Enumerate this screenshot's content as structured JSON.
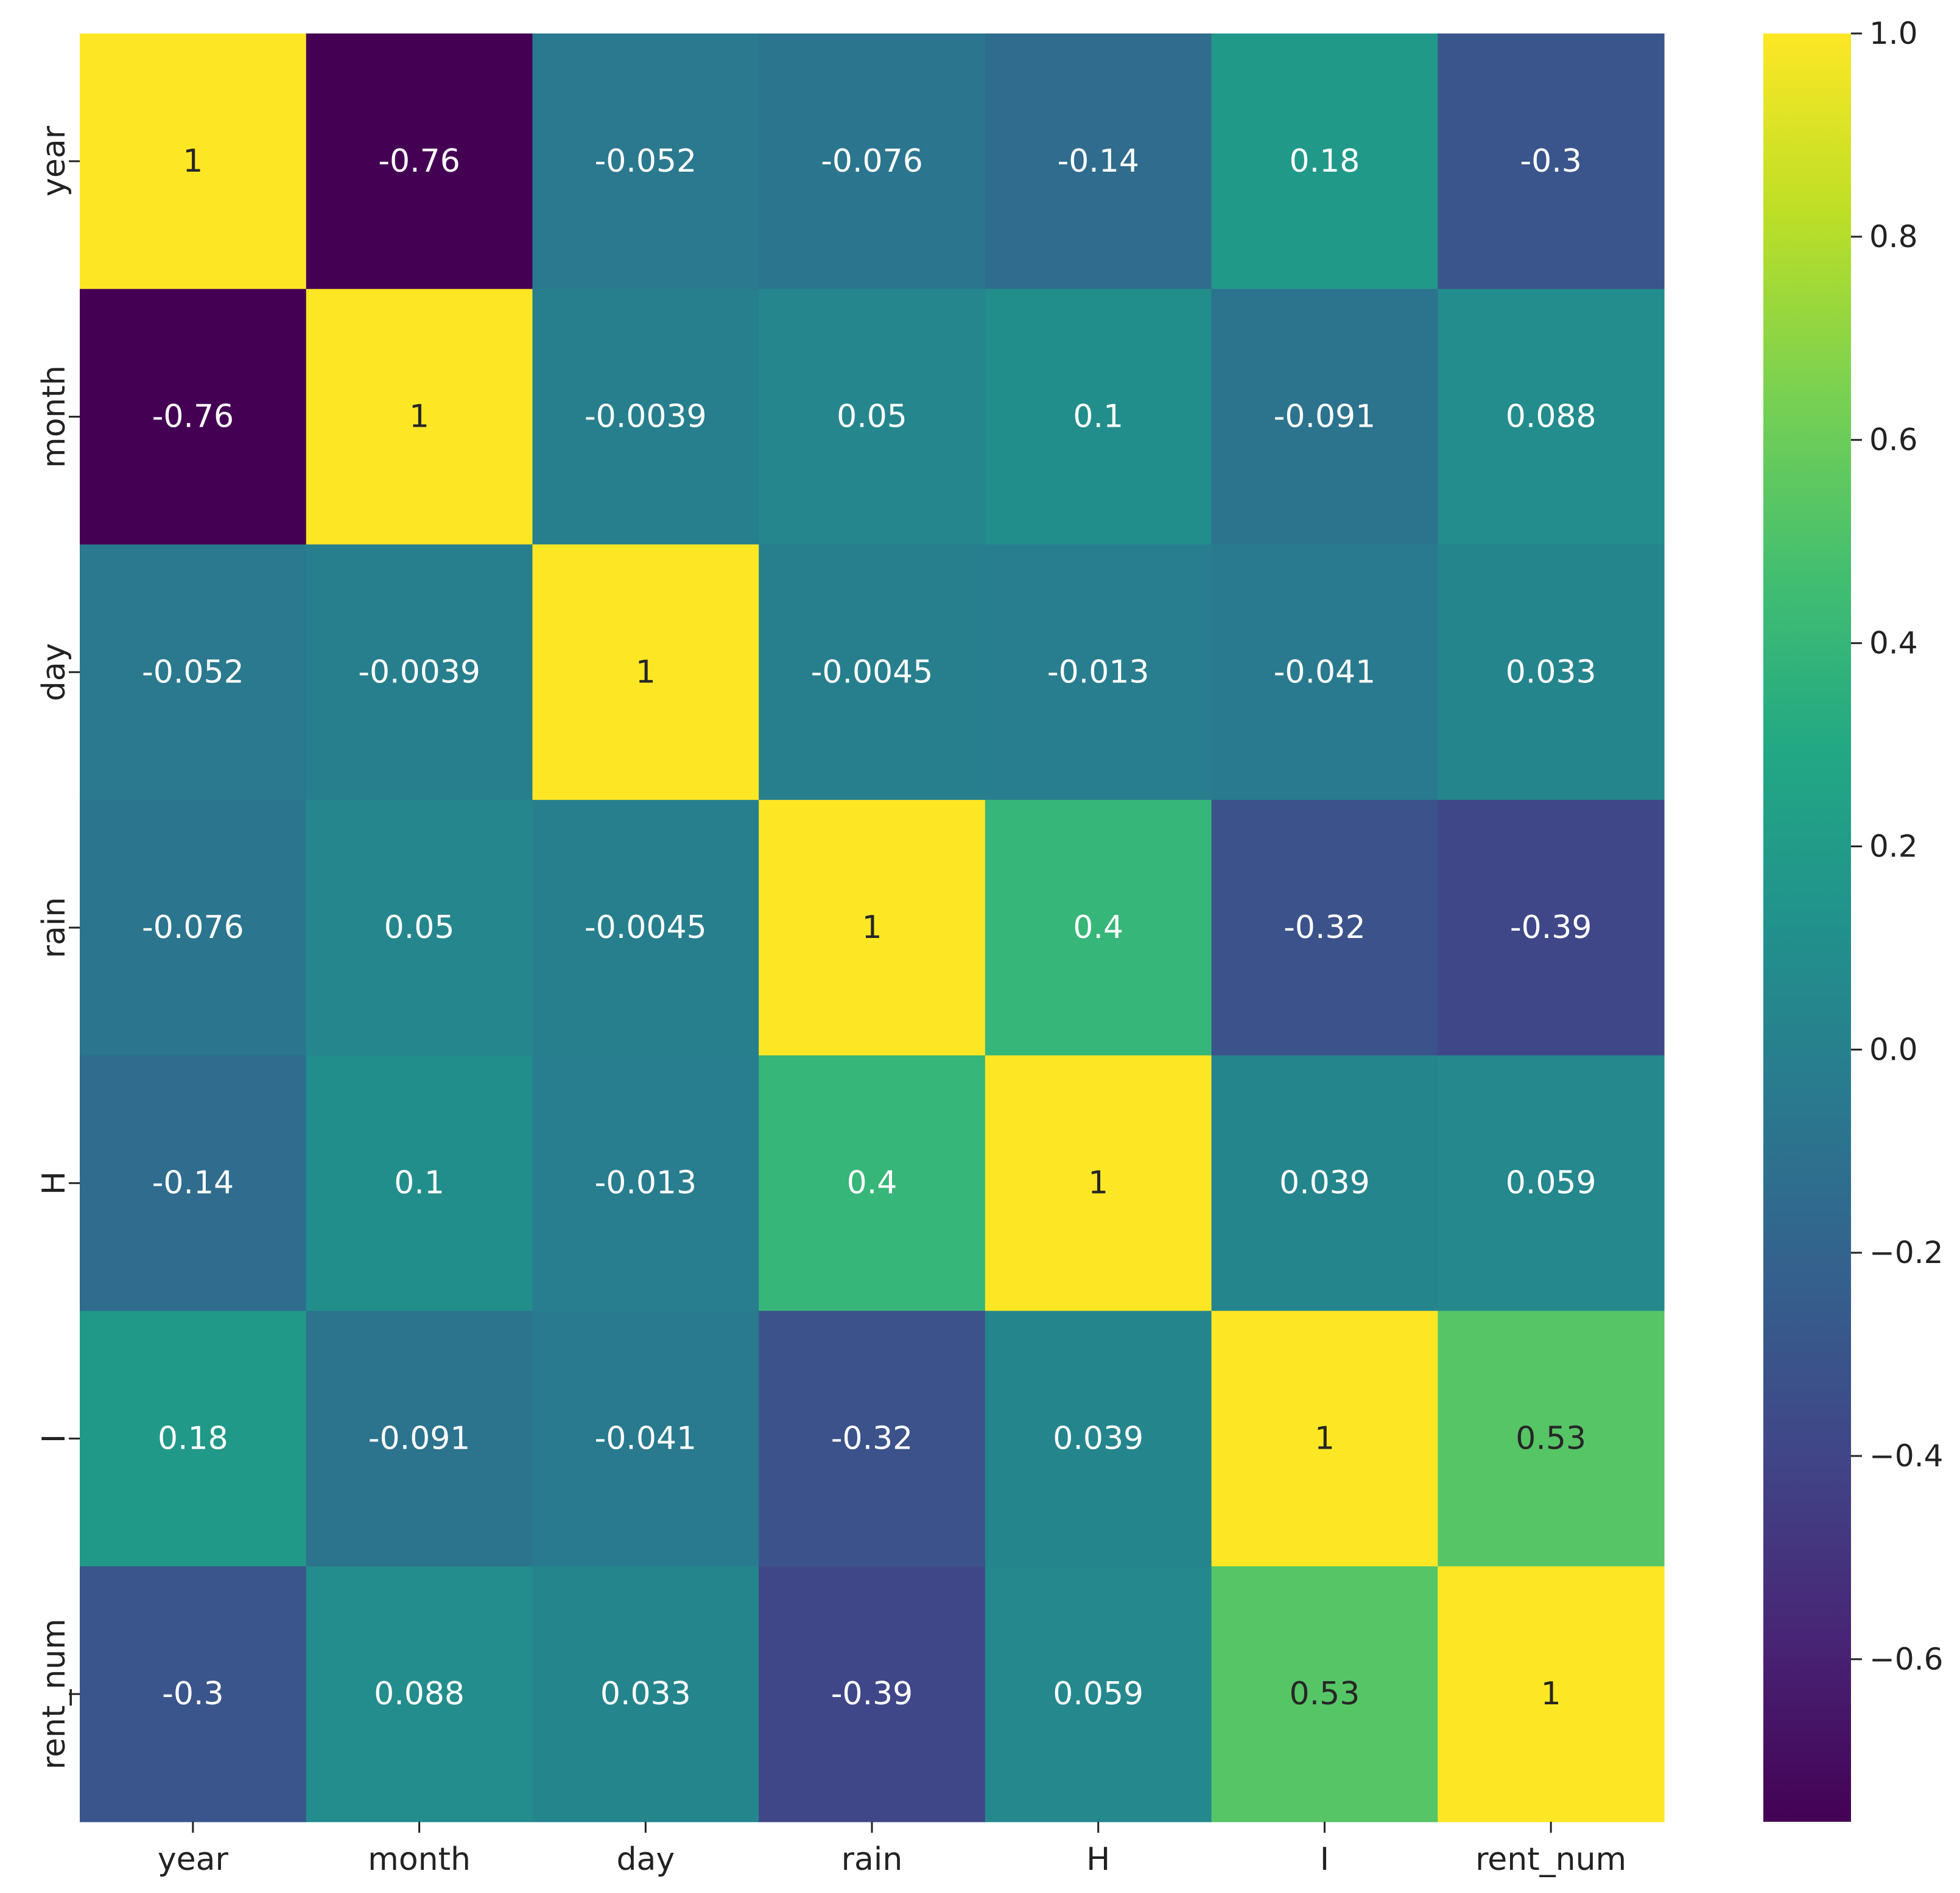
{
  "chart_data": {
    "type": "heatmap",
    "title": "",
    "xlabel": "",
    "ylabel": "",
    "rows": [
      "year",
      "month",
      "day",
      "rain",
      "H",
      "I",
      "rent_num"
    ],
    "columns": [
      "year",
      "month",
      "day",
      "rain",
      "H",
      "I",
      "rent_num"
    ],
    "values": [
      [
        1,
        -0.76,
        -0.052,
        -0.076,
        -0.14,
        0.18,
        -0.3
      ],
      [
        -0.76,
        1,
        -0.0039,
        0.05,
        0.1,
        -0.091,
        0.088
      ],
      [
        -0.052,
        -0.0039,
        1,
        -0.0045,
        -0.013,
        -0.041,
        0.033
      ],
      [
        -0.076,
        0.05,
        -0.0045,
        1,
        0.4,
        -0.32,
        -0.39
      ],
      [
        -0.14,
        0.1,
        -0.013,
        0.4,
        1,
        0.039,
        0.059
      ],
      [
        0.18,
        -0.091,
        -0.041,
        -0.32,
        0.039,
        1,
        0.53
      ],
      [
        -0.3,
        0.088,
        0.033,
        -0.39,
        0.059,
        0.53,
        1
      ]
    ],
    "annotations": [
      [
        "1",
        "-0.76",
        "-0.052",
        "-0.076",
        "-0.14",
        "0.18",
        "-0.3"
      ],
      [
        "-0.76",
        "1",
        "-0.0039",
        "0.05",
        "0.1",
        "-0.091",
        "0.088"
      ],
      [
        "-0.052",
        "-0.0039",
        "1",
        "-0.0045",
        "-0.013",
        "-0.041",
        "0.033"
      ],
      [
        "-0.076",
        "0.05",
        "-0.0045",
        "1",
        "0.4",
        "-0.32",
        "-0.39"
      ],
      [
        "-0.14",
        "0.1",
        "-0.013",
        "0.4",
        "1",
        "0.039",
        "0.059"
      ],
      [
        "0.18",
        "-0.091",
        "-0.041",
        "-0.32",
        "0.039",
        "1",
        "0.53"
      ],
      [
        "-0.3",
        "0.088",
        "0.033",
        "-0.39",
        "0.059",
        "0.53",
        "1"
      ]
    ],
    "colormap": "viridis",
    "vmin": -0.76,
    "vmax": 1.0,
    "colorbar": {
      "ticks": [
        1.0,
        0.8,
        0.6,
        0.4,
        0.2,
        0.0,
        -0.2,
        -0.4,
        -0.6
      ],
      "tick_labels": [
        "1.0",
        "0.8",
        "0.6",
        "0.4",
        "0.2",
        "0.0",
        "−0.2",
        "−0.4",
        "−0.6"
      ]
    }
  }
}
